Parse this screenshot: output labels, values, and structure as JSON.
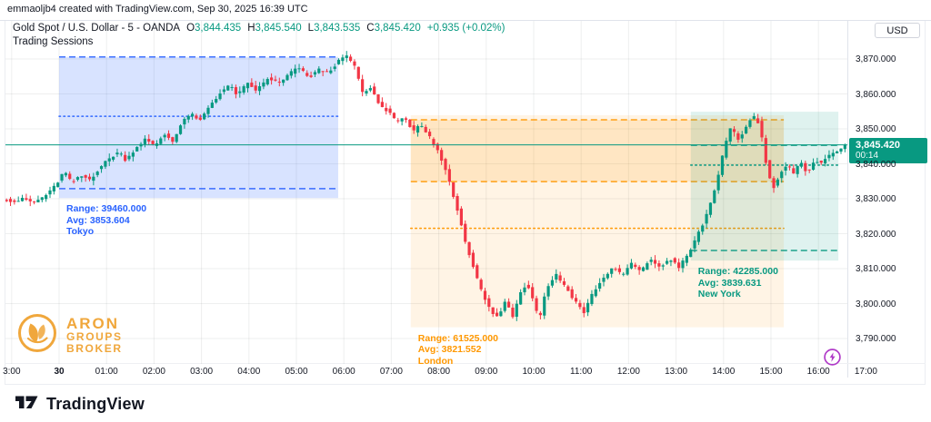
{
  "top_bar": {
    "text": "emmaoljb4 created with TradingView.com, Sep 30, 2025 16:39 UTC"
  },
  "header": {
    "symbol": "Gold Spot / U.S. Dollar - 5 - OANDA",
    "ohlc": [
      {
        "label": "O",
        "value": "3,844.435"
      },
      {
        "label": "H",
        "value": "3,845.540"
      },
      {
        "label": "L",
        "value": "3,843.535"
      },
      {
        "label": "C",
        "value": "3,845.420"
      }
    ],
    "change": "+0.935 (+0.02%)",
    "indicator": "Trading Sessions"
  },
  "price_axis": {
    "currency": "USD",
    "ticks": [
      {
        "label": "3,870.000",
        "value": 3870
      },
      {
        "label": "3,860.000",
        "value": 3860
      },
      {
        "label": "3,850.000",
        "value": 3850
      },
      {
        "label": "3,840.000",
        "value": 3840
      },
      {
        "label": "3,830.000",
        "value": 3830
      },
      {
        "label": "3,820.000",
        "value": 3820
      },
      {
        "label": "3,810.000",
        "value": 3810
      },
      {
        "label": "3,800.000",
        "value": 3800
      },
      {
        "label": "3,790.000",
        "value": 3790
      }
    ],
    "current": {
      "price": "3,845.420",
      "countdown": "00:14",
      "value": 3845.42
    }
  },
  "time_axis": {
    "ticks": [
      {
        "label": "3:00",
        "hour": -1
      },
      {
        "label": "30",
        "hour": 0,
        "bold": true
      },
      {
        "label": "01:00",
        "hour": 1
      },
      {
        "label": "02:00",
        "hour": 2
      },
      {
        "label": "03:00",
        "hour": 3
      },
      {
        "label": "04:00",
        "hour": 4
      },
      {
        "label": "05:00",
        "hour": 5
      },
      {
        "label": "06:00",
        "hour": 6
      },
      {
        "label": "07:00",
        "hour": 7
      },
      {
        "label": "08:00",
        "hour": 8
      },
      {
        "label": "09:00",
        "hour": 9
      },
      {
        "label": "10:00",
        "hour": 10
      },
      {
        "label": "11:00",
        "hour": 11
      },
      {
        "label": "12:00",
        "hour": 12
      },
      {
        "label": "13:00",
        "hour": 13
      },
      {
        "label": "14:00",
        "hour": 14
      },
      {
        "label": "15:00",
        "hour": 15
      },
      {
        "label": "16:00",
        "hour": 16
      },
      {
        "label": "17:00",
        "hour": 17
      }
    ]
  },
  "colors": {
    "up": "#089981",
    "down": "#F23645",
    "current_price": "#089981",
    "tokyo": "#2962FF",
    "london": "#FF9800",
    "new_york": "#089981",
    "boost": "#B03BC8",
    "brand_orange": "#F0A73C",
    "text": "#131722",
    "grid": "rgba(42,46,57,0.08)",
    "border": "#E0E3EB"
  },
  "aron_logo": {
    "lines": [
      "ARON",
      "GROUPS",
      "BROKER"
    ]
  },
  "footer": {
    "brand": "TradingView"
  },
  "chart_data": {
    "type": "candlestick",
    "title": "Gold Spot / U.S. Dollar",
    "exchange": "OANDA",
    "interval_minutes": 5,
    "ohlc_current": {
      "open": 3844.435,
      "high": 3845.54,
      "low": 3843.535,
      "close": 3845.42,
      "change": 0.935,
      "change_pct": 0.02
    },
    "ylim": [
      3785,
      3875
    ],
    "xlim_hours": [
      -1.15,
      16.65
    ],
    "grid": true,
    "sessions": [
      {
        "id": "tokyo",
        "name": "Tokyo",
        "range_text": "Range: 39460.000",
        "avg_text": "Avg: 3853.604",
        "range": 39.46,
        "avg": 3853.604,
        "t_start": 0.0,
        "t_end": 5.88,
        "box_high": 3870.6,
        "box_low": 3830.2,
        "dashed_levels": [
          3870.6,
          3832.9
        ],
        "color": "#2962FF",
        "fill": "rgba(41,98,255,0.18)"
      },
      {
        "id": "london",
        "name": "London",
        "range_text": "Range: 61525.000",
        "avg_text": "Avg: 3821.552",
        "range": 61.525,
        "avg": 3821.552,
        "t_start": 7.41,
        "t_end": 15.27,
        "box_high": 3853.9,
        "box_low": 3793.2,
        "dashed_levels": [
          3852.6,
          3834.9
        ],
        "body_high": 3852.6,
        "body_low": 3834.9,
        "body_fill": "rgba(255,152,0,0.15)",
        "color": "#FF9800",
        "fill": "rgba(255,152,0,0.10)"
      },
      {
        "id": "newyork",
        "name": "New York",
        "range_text": "Range: 42285.000",
        "avg_text": "Avg: 3839.631",
        "range": 42.285,
        "avg": 3839.631,
        "t_start": 13.31,
        "t_end": 16.42,
        "box_high": 3854.9,
        "box_low": 3812.3,
        "dashed_levels": [
          3845.3,
          3815.2
        ],
        "color": "#089981",
        "fill": "rgba(8,153,129,0.13)"
      }
    ],
    "price_path": [
      [
        -1.15,
        3830.0
      ],
      [
        -0.9,
        3829.2
      ],
      [
        -0.7,
        3830.0
      ],
      [
        -0.5,
        3828.8
      ],
      [
        -0.3,
        3830.5
      ],
      [
        -0.15,
        3832.0
      ],
      [
        0,
        3834.5
      ],
      [
        0.15,
        3838.0
      ],
      [
        0.3,
        3834.5
      ],
      [
        0.5,
        3836.5
      ],
      [
        0.7,
        3835.5
      ],
      [
        0.9,
        3839.0
      ],
      [
        1.1,
        3841.5
      ],
      [
        1.3,
        3843.5
      ],
      [
        1.45,
        3841.0
      ],
      [
        1.65,
        3844.5
      ],
      [
        1.85,
        3847.0
      ],
      [
        2.05,
        3845.0
      ],
      [
        2.25,
        3848.5
      ],
      [
        2.45,
        3846.5
      ],
      [
        2.6,
        3851.0
      ],
      [
        2.8,
        3854.5
      ],
      [
        3.0,
        3852.0
      ],
      [
        3.2,
        3856.5
      ],
      [
        3.45,
        3860.5
      ],
      [
        3.65,
        3862.5
      ],
      [
        3.8,
        3859.5
      ],
      [
        4.0,
        3863.0
      ],
      [
        4.2,
        3861.0
      ],
      [
        4.45,
        3864.5
      ],
      [
        4.7,
        3863.0
      ],
      [
        4.9,
        3866.0
      ],
      [
        5.1,
        3867.5
      ],
      [
        5.3,
        3864.5
      ],
      [
        5.5,
        3867.0
      ],
      [
        5.7,
        3866.0
      ],
      [
        5.9,
        3869.0
      ],
      [
        6.1,
        3871.0
      ],
      [
        6.3,
        3867.0
      ],
      [
        6.45,
        3859.5
      ],
      [
        6.6,
        3862.0
      ],
      [
        6.8,
        3856.5
      ],
      [
        7.0,
        3855.0
      ],
      [
        7.15,
        3851.5
      ],
      [
        7.3,
        3854.0
      ],
      [
        7.5,
        3849.0
      ],
      [
        7.65,
        3851.0
      ],
      [
        7.85,
        3847.5
      ],
      [
        8.0,
        3844.0
      ],
      [
        8.15,
        3840.0
      ],
      [
        8.3,
        3833.0
      ],
      [
        8.45,
        3826.0
      ],
      [
        8.6,
        3818.0
      ],
      [
        8.7,
        3813.5
      ],
      [
        8.85,
        3807.0
      ],
      [
        9.0,
        3801.5
      ],
      [
        9.15,
        3797.5
      ],
      [
        9.3,
        3796.0
      ],
      [
        9.45,
        3801.0
      ],
      [
        9.6,
        3796.5
      ],
      [
        9.75,
        3803.0
      ],
      [
        9.9,
        3806.0
      ],
      [
        10.05,
        3800.5
      ],
      [
        10.15,
        3795.0
      ],
      [
        10.3,
        3804.0
      ],
      [
        10.5,
        3808.5
      ],
      [
        10.7,
        3805.0
      ],
      [
        10.9,
        3801.0
      ],
      [
        11.1,
        3797.5
      ],
      [
        11.3,
        3803.5
      ],
      [
        11.5,
        3807.0
      ],
      [
        11.7,
        3810.5
      ],
      [
        11.9,
        3808.0
      ],
      [
        12.1,
        3811.5
      ],
      [
        12.3,
        3809.0
      ],
      [
        12.5,
        3813.0
      ],
      [
        12.7,
        3810.0
      ],
      [
        12.9,
        3813.0
      ],
      [
        13.1,
        3810.5
      ],
      [
        13.3,
        3814.0
      ],
      [
        13.45,
        3818.5
      ],
      [
        13.6,
        3822.5
      ],
      [
        13.75,
        3828.0
      ],
      [
        13.9,
        3835.0
      ],
      [
        14.05,
        3844.0
      ],
      [
        14.2,
        3850.5
      ],
      [
        14.35,
        3847.0
      ],
      [
        14.5,
        3850.0
      ],
      [
        14.65,
        3854.0
      ],
      [
        14.8,
        3851.5
      ],
      [
        14.9,
        3843.0
      ],
      [
        15.0,
        3836.0
      ],
      [
        15.1,
        3833.5
      ],
      [
        15.25,
        3837.5
      ],
      [
        15.4,
        3840.0
      ],
      [
        15.5,
        3836.5
      ],
      [
        15.65,
        3840.5
      ],
      [
        15.8,
        3837.5
      ],
      [
        15.95,
        3841.0
      ],
      [
        16.1,
        3840.0
      ],
      [
        16.3,
        3843.0
      ],
      [
        16.45,
        3844.0
      ],
      [
        16.6,
        3845.42
      ]
    ]
  }
}
